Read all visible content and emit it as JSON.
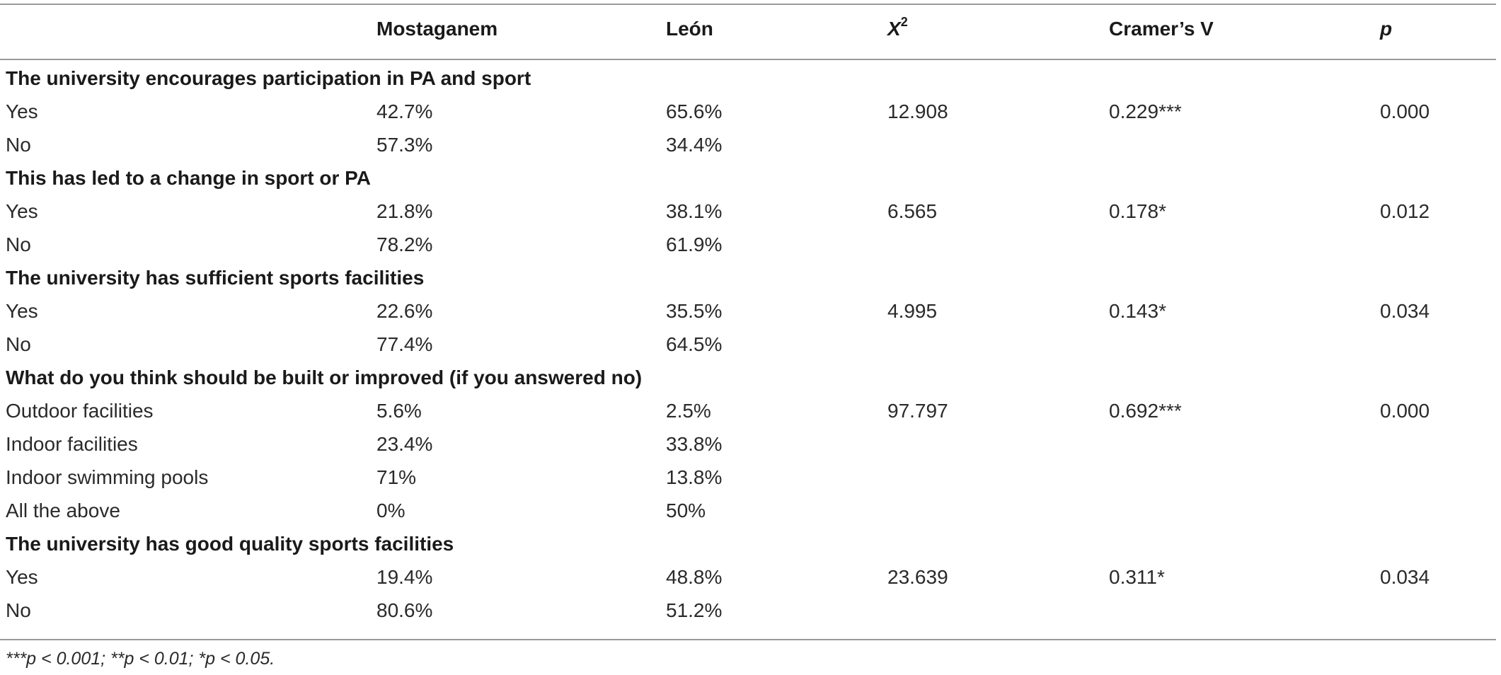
{
  "header": {
    "col1": "Mostaganem",
    "col2": "León",
    "col3_base": "X",
    "col3_sup": "2",
    "col4": "Cramer’s V",
    "col5": "p"
  },
  "sections": [
    {
      "title": "The university encourages participation in PA and sport",
      "rows": [
        {
          "label": "Yes",
          "mostaganem": "42.7%",
          "leon": "65.6%",
          "x2": "12.908",
          "cramers_v": "0.229***",
          "p": "0.000"
        },
        {
          "label": "No",
          "mostaganem": "57.3%",
          "leon": "34.4%",
          "x2": "",
          "cramers_v": "",
          "p": ""
        }
      ]
    },
    {
      "title": "This has led to a change in sport or PA",
      "rows": [
        {
          "label": "Yes",
          "mostaganem": "21.8%",
          "leon": "38.1%",
          "x2": "6.565",
          "cramers_v": "0.178*",
          "p": "0.012"
        },
        {
          "label": "No",
          "mostaganem": "78.2%",
          "leon": "61.9%",
          "x2": "",
          "cramers_v": "",
          "p": ""
        }
      ]
    },
    {
      "title": "The university has sufficient sports facilities",
      "rows": [
        {
          "label": "Yes",
          "mostaganem": "22.6%",
          "leon": "35.5%",
          "x2": "4.995",
          "cramers_v": "0.143*",
          "p": "0.034"
        },
        {
          "label": "No",
          "mostaganem": "77.4%",
          "leon": "64.5%",
          "x2": "",
          "cramers_v": "",
          "p": ""
        }
      ]
    },
    {
      "title": "What do you think should be built or improved (if you answered no)",
      "rows": [
        {
          "label": "Outdoor facilities",
          "mostaganem": "5.6%",
          "leon": "2.5%",
          "x2": "97.797",
          "cramers_v": "0.692***",
          "p": "0.000"
        },
        {
          "label": "Indoor facilities",
          "mostaganem": "23.4%",
          "leon": "33.8%",
          "x2": "",
          "cramers_v": "",
          "p": ""
        },
        {
          "label": "Indoor swimming pools",
          "mostaganem": "71%",
          "leon": "13.8%",
          "x2": "",
          "cramers_v": "",
          "p": ""
        },
        {
          "label": "All the above",
          "mostaganem": "0%",
          "leon": "50%",
          "x2": "",
          "cramers_v": "",
          "p": ""
        }
      ]
    },
    {
      "title": "The university has good quality sports facilities",
      "rows": [
        {
          "label": "Yes",
          "mostaganem": "19.4%",
          "leon": "48.8%",
          "x2": "23.639",
          "cramers_v": "0.311*",
          "p": "0.034"
        },
        {
          "label": "No",
          "mostaganem": "80.6%",
          "leon": "51.2%",
          "x2": "",
          "cramers_v": "",
          "p": ""
        }
      ]
    }
  ],
  "footnote": "***p < 0.001; **p < 0.01; *p < 0.05."
}
